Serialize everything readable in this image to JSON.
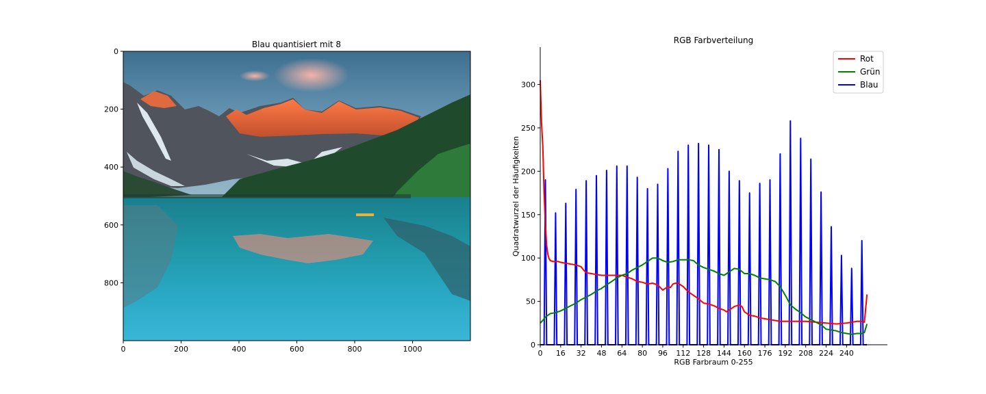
{
  "chart_data": [
    {
      "type": "image",
      "title": "Blau quantisiert mit 8",
      "xticks": [
        0,
        200,
        400,
        600,
        800,
        1000
      ],
      "yticks": [
        0,
        200,
        400,
        600,
        800
      ],
      "xlim": [
        0,
        1200
      ],
      "ylim": [
        1000,
        0
      ],
      "colors": {
        "sky": "#5a8fae",
        "cloud_pink": "#e8a4a0",
        "rock": "#4f545d",
        "peak_glow": "#f06a3a",
        "snow": "#dfe8ee",
        "forest": "#1f4a2c",
        "forest_light": "#2e7a3a",
        "water_top": "#1d8f9e",
        "water_bottom": "#3ab6d6"
      }
    },
    {
      "type": "line",
      "title": "RGB Farbverteilung",
      "xlabel": "RGB Farbraum 0-255",
      "ylabel": "Quadratwurzel der Häufigkeiten",
      "xlim": [
        0,
        272
      ],
      "ylim": [
        0,
        343
      ],
      "xticks": [
        0,
        16,
        32,
        48,
        64,
        80,
        96,
        112,
        128,
        144,
        160,
        176,
        192,
        208,
        224,
        240
      ],
      "yticks": [
        0,
        50,
        100,
        150,
        200,
        250,
        300
      ],
      "legend_position": "top-right",
      "series": [
        {
          "name": "Rot",
          "color": "#ff0000",
          "points": [
            [
              0,
              305
            ],
            [
              1,
              255
            ],
            [
              2,
              230
            ],
            [
              3,
              175
            ],
            [
              4,
              140
            ],
            [
              5,
              115
            ],
            [
              6,
              104
            ],
            [
              7,
              99
            ],
            [
              8,
              97
            ],
            [
              10,
              96
            ],
            [
              12,
              96
            ],
            [
              14,
              96
            ],
            [
              16,
              95
            ],
            [
              20,
              94
            ],
            [
              24,
              93
            ],
            [
              28,
              92
            ],
            [
              30,
              91
            ],
            [
              32,
              90
            ],
            [
              34,
              86
            ],
            [
              36,
              83
            ],
            [
              40,
              82
            ],
            [
              44,
              81
            ],
            [
              48,
              80
            ],
            [
              52,
              80
            ],
            [
              56,
              80
            ],
            [
              60,
              80
            ],
            [
              64,
              80
            ],
            [
              66,
              79
            ],
            [
              68,
              78
            ],
            [
              72,
              76
            ],
            [
              76,
              73
            ],
            [
              80,
              72
            ],
            [
              84,
              70
            ],
            [
              88,
              71
            ],
            [
              92,
              69
            ],
            [
              96,
              63
            ],
            [
              98,
              65
            ],
            [
              100,
              67
            ],
            [
              102,
              66
            ],
            [
              104,
              70
            ],
            [
              106,
              71
            ],
            [
              108,
              71
            ],
            [
              110,
              69
            ],
            [
              112,
              67
            ],
            [
              116,
              61
            ],
            [
              120,
              57
            ],
            [
              124,
              53
            ],
            [
              128,
              48
            ],
            [
              132,
              47
            ],
            [
              136,
              45
            ],
            [
              140,
              42
            ],
            [
              144,
              40
            ],
            [
              146,
              38
            ],
            [
              148,
              40
            ],
            [
              152,
              44
            ],
            [
              154,
              45
            ],
            [
              156,
              46
            ],
            [
              158,
              44
            ],
            [
              160,
              38
            ],
            [
              164,
              34
            ],
            [
              168,
              33
            ],
            [
              172,
              31
            ],
            [
              176,
              30
            ],
            [
              180,
              29
            ],
            [
              184,
              28
            ],
            [
              188,
              27
            ],
            [
              192,
              27
            ],
            [
              196,
              27
            ],
            [
              200,
              27
            ],
            [
              208,
              27
            ],
            [
              216,
              26
            ],
            [
              224,
              25
            ],
            [
              232,
              24
            ],
            [
              240,
              25
            ],
            [
              244,
              26
            ],
            [
              248,
              27
            ],
            [
              252,
              27
            ],
            [
              254,
              26
            ],
            [
              256,
              58
            ]
          ]
        },
        {
          "name": "Grün",
          "color": "#008000",
          "points": [
            [
              0,
              25
            ],
            [
              2,
              28
            ],
            [
              4,
              32
            ],
            [
              8,
              36
            ],
            [
              12,
              37
            ],
            [
              16,
              39
            ],
            [
              20,
              42
            ],
            [
              24,
              45
            ],
            [
              28,
              48
            ],
            [
              32,
              52
            ],
            [
              36,
              55
            ],
            [
              40,
              58
            ],
            [
              44,
              62
            ],
            [
              48,
              65
            ],
            [
              52,
              69
            ],
            [
              56,
              73
            ],
            [
              60,
              77
            ],
            [
              64,
              80
            ],
            [
              68,
              82
            ],
            [
              72,
              86
            ],
            [
              76,
              89
            ],
            [
              80,
              92
            ],
            [
              84,
              96
            ],
            [
              88,
              100
            ],
            [
              92,
              100
            ],
            [
              96,
              97
            ],
            [
              100,
              95
            ],
            [
              104,
              96
            ],
            [
              108,
              98
            ],
            [
              112,
              98
            ],
            [
              116,
              98
            ],
            [
              120,
              97
            ],
            [
              124,
              92
            ],
            [
              128,
              89
            ],
            [
              132,
              87
            ],
            [
              136,
              85
            ],
            [
              140,
              82
            ],
            [
              144,
              80
            ],
            [
              148,
              84
            ],
            [
              152,
              88
            ],
            [
              156,
              87
            ],
            [
              160,
              82
            ],
            [
              164,
              82
            ],
            [
              168,
              80
            ],
            [
              172,
              77
            ],
            [
              176,
              76
            ],
            [
              180,
              75
            ],
            [
              184,
              73
            ],
            [
              188,
              67
            ],
            [
              192,
              57
            ],
            [
              196,
              46
            ],
            [
              200,
              41
            ],
            [
              204,
              37
            ],
            [
              208,
              32
            ],
            [
              212,
              29
            ],
            [
              216,
              26
            ],
            [
              220,
              23
            ],
            [
              224,
              18
            ],
            [
              228,
              17
            ],
            [
              232,
              16
            ],
            [
              236,
              14
            ],
            [
              240,
              13
            ],
            [
              244,
              12
            ],
            [
              248,
              13
            ],
            [
              252,
              13
            ],
            [
              254,
              14
            ],
            [
              256,
              24
            ]
          ]
        },
        {
          "name": "Blau",
          "color": "#0000ff",
          "points": [
            [
              0,
              0
            ],
            [
              3,
              0
            ],
            [
              4,
              190
            ],
            [
              5,
              0
            ],
            [
              11,
              0
            ],
            [
              12,
              152
            ],
            [
              13,
              0
            ],
            [
              19,
              0
            ],
            [
              20,
              163
            ],
            [
              21,
              0
            ],
            [
              27,
              0
            ],
            [
              28,
              179
            ],
            [
              29,
              0
            ],
            [
              35,
              0
            ],
            [
              36,
              189
            ],
            [
              37,
              0
            ],
            [
              43,
              0
            ],
            [
              44,
              195
            ],
            [
              45,
              0
            ],
            [
              51,
              0
            ],
            [
              52,
              201
            ],
            [
              53,
              0
            ],
            [
              59,
              0
            ],
            [
              60,
              206
            ],
            [
              61,
              0
            ],
            [
              67,
              0
            ],
            [
              68,
              206
            ],
            [
              69,
              0
            ],
            [
              75,
              0
            ],
            [
              76,
              193
            ],
            [
              77,
              0
            ],
            [
              83,
              0
            ],
            [
              84,
              180
            ],
            [
              85,
              0
            ],
            [
              91,
              0
            ],
            [
              92,
              185
            ],
            [
              93,
              0
            ],
            [
              99,
              0
            ],
            [
              100,
              203
            ],
            [
              101,
              0
            ],
            [
              107,
              0
            ],
            [
              108,
              223
            ],
            [
              109,
              0
            ],
            [
              115,
              0
            ],
            [
              116,
              230
            ],
            [
              117,
              0
            ],
            [
              123,
              0
            ],
            [
              124,
              232
            ],
            [
              125,
              0
            ],
            [
              131,
              0
            ],
            [
              132,
              230
            ],
            [
              133,
              0
            ],
            [
              139,
              0
            ],
            [
              140,
              225
            ],
            [
              141,
              0
            ],
            [
              147,
              0
            ],
            [
              148,
              200
            ],
            [
              149,
              0
            ],
            [
              155,
              0
            ],
            [
              156,
              189
            ],
            [
              157,
              0
            ],
            [
              163,
              0
            ],
            [
              164,
              175
            ],
            [
              165,
              0
            ],
            [
              171,
              0
            ],
            [
              172,
              186
            ],
            [
              173,
              0
            ],
            [
              179,
              0
            ],
            [
              180,
              190
            ],
            [
              181,
              0
            ],
            [
              187,
              0
            ],
            [
              188,
              220
            ],
            [
              189,
              0
            ],
            [
              195,
              0
            ],
            [
              196,
              258
            ],
            [
              197,
              0
            ],
            [
              203,
              0
            ],
            [
              204,
              238
            ],
            [
              205,
              0
            ],
            [
              211,
              0
            ],
            [
              212,
              214
            ],
            [
              213,
              0
            ],
            [
              219,
              0
            ],
            [
              220,
              176
            ],
            [
              221,
              0
            ],
            [
              227,
              0
            ],
            [
              228,
              136
            ],
            [
              229,
              0
            ],
            [
              235,
              0
            ],
            [
              236,
              103
            ],
            [
              237,
              0
            ],
            [
              243,
              0
            ],
            [
              244,
              88
            ],
            [
              245,
              0
            ],
            [
              251,
              0
            ],
            [
              252,
              120
            ],
            [
              253,
              0
            ],
            [
              256,
              0
            ]
          ]
        }
      ]
    }
  ]
}
